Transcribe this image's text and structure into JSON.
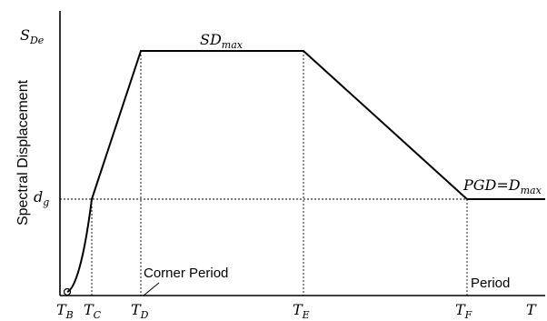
{
  "y_axis": {
    "title": "Spectral Displacement",
    "top_label": {
      "main": "S",
      "sub": "De"
    },
    "dg_label": {
      "main": "d",
      "sub": "g"
    }
  },
  "x_ticks": [
    {
      "main": "T",
      "sub": "B"
    },
    {
      "main": "T",
      "sub": "C"
    },
    {
      "main": "T",
      "sub": "D"
    },
    {
      "main": "T",
      "sub": "E"
    },
    {
      "main": "T",
      "sub": "F"
    },
    {
      "main": "T",
      "sub": ""
    }
  ],
  "annotations": {
    "sdmax": {
      "main": "SD",
      "sub": "max"
    },
    "pgd": {
      "prefix": "PGD=D",
      "sub": "max"
    },
    "corner_period": "Corner Period",
    "period": "Period"
  },
  "colors": {
    "line": "#000000",
    "dotted": "#000000",
    "background": "#ffffff"
  }
}
